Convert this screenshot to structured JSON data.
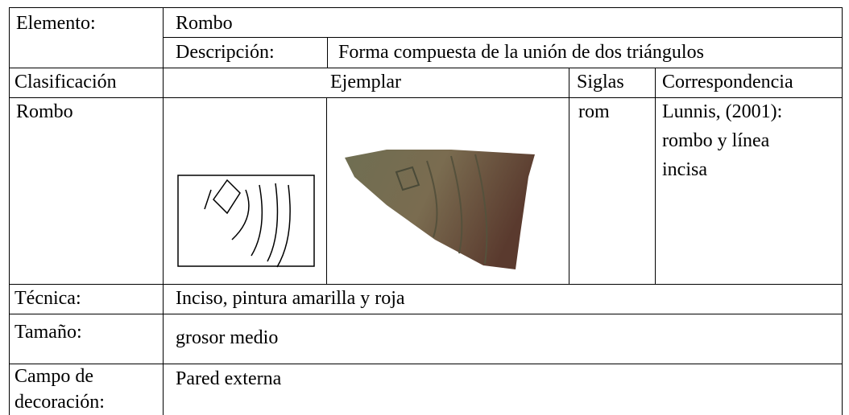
{
  "element": {
    "label": "Elemento:",
    "value": "Rombo"
  },
  "description": {
    "label": "Descripción:",
    "value": "Forma compuesta de la unión de dos triángulos"
  },
  "header": {
    "classification": "Clasificación",
    "example": "Ejemplar",
    "acronym": "Siglas",
    "correspondence": "Correspondencia"
  },
  "entry": {
    "classification": "Rombo",
    "acronym": "rom",
    "correspondence": "Lunnis, (2001): rombo y línea incisa"
  },
  "technique": {
    "label": "Técnica:",
    "value": "Inciso, pintura amarilla y roja"
  },
  "size": {
    "label": "Tamaño:",
    "value": "grosor medio"
  },
  "field": {
    "label": "Campo de decoración:",
    "value": "Pared externa"
  }
}
